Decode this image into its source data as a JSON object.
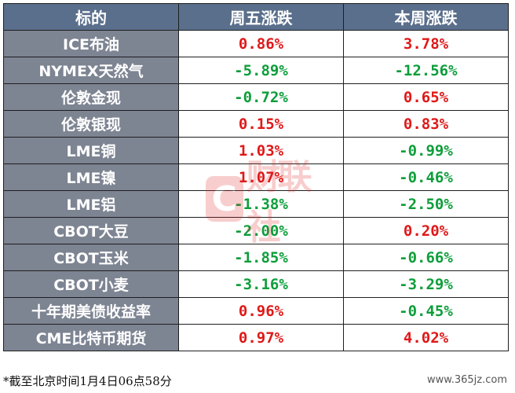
{
  "header": {
    "col1": "标的",
    "col2": "周五涨跌",
    "col3": "本周涨跌"
  },
  "colors": {
    "up": "#e01818",
    "down": "#0d9e3a"
  },
  "rows": [
    {
      "name": "ICE布油",
      "fri": "0.86%",
      "fri_dir": "up",
      "week": "3.78%",
      "week_dir": "up"
    },
    {
      "name": "NYMEX天然气",
      "fri": "-5.89%",
      "fri_dir": "down",
      "week": "-12.56%",
      "week_dir": "down"
    },
    {
      "name": "伦敦金现",
      "fri": "-0.72%",
      "fri_dir": "down",
      "week": "0.65%",
      "week_dir": "up"
    },
    {
      "name": "伦敦银现",
      "fri": "0.15%",
      "fri_dir": "up",
      "week": "0.83%",
      "week_dir": "up"
    },
    {
      "name": "LME铜",
      "fri": "1.03%",
      "fri_dir": "up",
      "week": "-0.99%",
      "week_dir": "down"
    },
    {
      "name": "LME镍",
      "fri": "1.07%",
      "fri_dir": "up",
      "week": "-0.46%",
      "week_dir": "down"
    },
    {
      "name": "LME铝",
      "fri": "-1.38%",
      "fri_dir": "down",
      "week": "-2.50%",
      "week_dir": "down"
    },
    {
      "name": "CBOT大豆",
      "fri": "-2.00%",
      "fri_dir": "down",
      "week": "0.20%",
      "week_dir": "up"
    },
    {
      "name": "CBOT玉米",
      "fri": "-1.85%",
      "fri_dir": "down",
      "week": "-0.66%",
      "week_dir": "down"
    },
    {
      "name": "CBOT小麦",
      "fri": "-3.16%",
      "fri_dir": "down",
      "week": "-3.29%",
      "week_dir": "down"
    },
    {
      "name": "十年期美债收益率",
      "fri": "0.96%",
      "fri_dir": "up",
      "week": "-0.45%",
      "week_dir": "down"
    },
    {
      "name": "CME比特币期货",
      "fri": "0.97%",
      "fri_dir": "up",
      "week": "4.02%",
      "week_dir": "up"
    }
  ],
  "watermark": {
    "badge": "C",
    "text": "财联社"
  },
  "footnote": "*截至北京时间1月4日06点58分",
  "site": "www.365jz.com"
}
